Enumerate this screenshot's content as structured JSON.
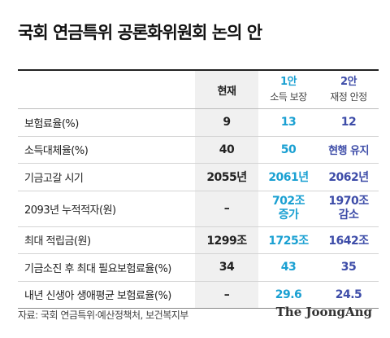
{
  "title": "국회 연금특위 공론화위원회 논의 안",
  "header": {
    "current": "현재",
    "plan1_num": "1안",
    "plan1_sub": "소득 보장",
    "plan2_num": "2안",
    "plan2_sub": "재정 안정"
  },
  "rows": [
    {
      "label": "보험료율(%)",
      "current": "9",
      "plan1": "13",
      "plan2": "12"
    },
    {
      "label": "소득대체율(%)",
      "current": "40",
      "plan1": "50",
      "plan2": "현행 유지"
    },
    {
      "label": "기금고갈 시기",
      "current": "2055년",
      "plan1": "2061년",
      "plan2": "2062년"
    },
    {
      "label": "2093년 누적적자(원)",
      "current": "–",
      "plan1_line1": "702조",
      "plan1_line2": "증가",
      "plan2_line1": "1970조",
      "plan2_line2": "감소"
    },
    {
      "label": "최대 적립금(원)",
      "current": "1299조",
      "plan1": "1725조",
      "plan2": "1642조"
    },
    {
      "label": "기금소진 후 최대 필요보험료율(%)",
      "current": "34",
      "plan1": "43",
      "plan2": "35"
    },
    {
      "label": "내년 신생아 생애평균 보험료율(%)",
      "current": "–",
      "plan1": "29.6",
      "plan2": "24.5"
    }
  ],
  "source": "자료: 국회 연금특위·예산정책처, 보건복지부",
  "brand": "The JoongAng",
  "colors": {
    "plan1": "#1aa0d2",
    "plan2": "#3d4ca8",
    "current_bg": "#f0f0f0"
  }
}
